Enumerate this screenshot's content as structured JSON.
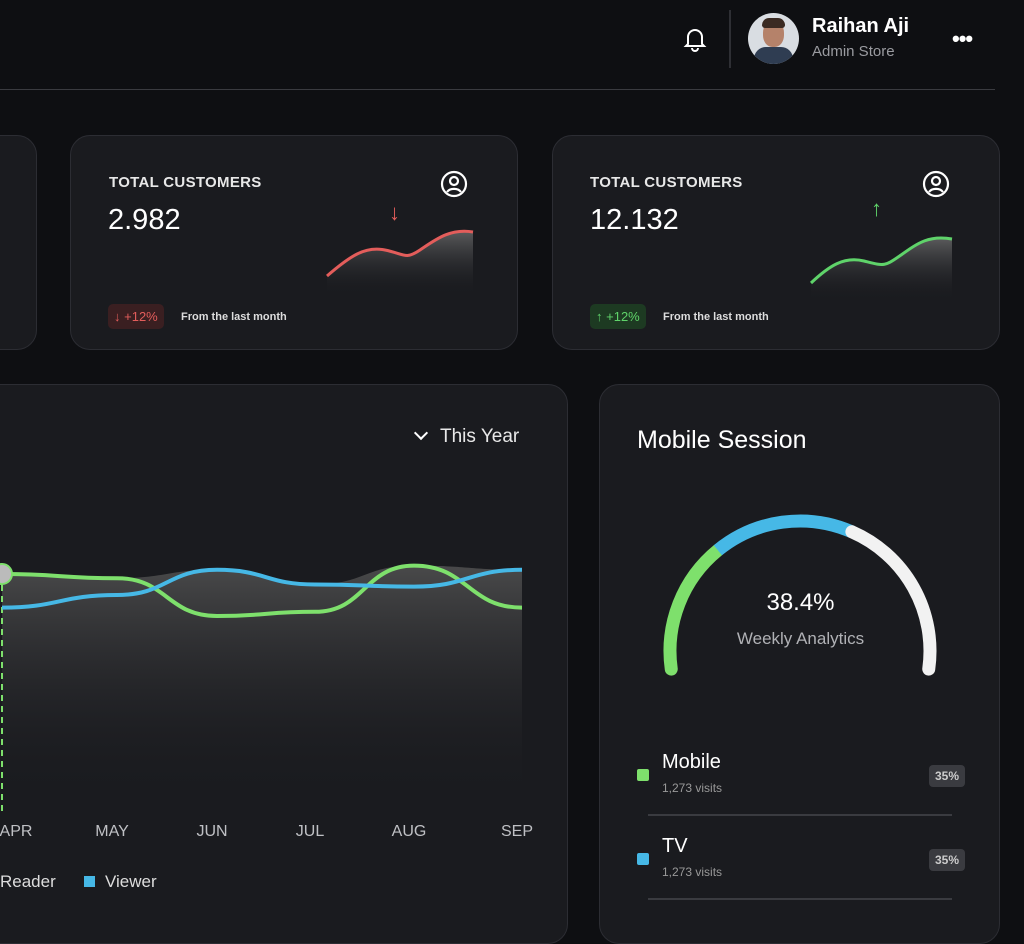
{
  "header": {
    "user_name": "Raihan Aji",
    "user_role": "Admin Store"
  },
  "cards": [
    {
      "title": "TOTAL CUSTOMERS",
      "value": "2.982",
      "change": "+12%",
      "direction": "down",
      "note": "From the last month",
      "color": "#e35d5b"
    },
    {
      "title": "TOTAL CUSTOMERS",
      "value": "12.132",
      "change": "+12%",
      "direction": "up",
      "note": "From the last month",
      "color": "#5fd36a"
    }
  ],
  "chart": {
    "period": "This Year",
    "legend": [
      "Reader",
      "Viewer"
    ]
  },
  "chart_data": {
    "type": "line",
    "categories": [
      "APR",
      "MAY",
      "JUN",
      "JUL",
      "AUG",
      "SEP"
    ],
    "series": [
      {
        "name": "Reader",
        "color": "#7ee06c",
        "values": [
          60,
          58,
          40,
          42,
          64,
          44
        ]
      },
      {
        "name": "Viewer",
        "color": "#46b8e6",
        "values": [
          44,
          50,
          62,
          55,
          54,
          62
        ]
      }
    ]
  },
  "mobile": {
    "title": "Mobile Session",
    "percent": "38.4%",
    "label": "Weekly Analytics",
    "gauge": [
      {
        "color": "#7ee06c",
        "share": 0.3
      },
      {
        "color": "#46b8e6",
        "share": 0.32
      },
      {
        "color": "#f2f2f2",
        "share": 0.38
      }
    ],
    "items": [
      {
        "name": "Mobile",
        "visits": "1,273 visits",
        "pct": "35%",
        "color": "#7ee06c"
      },
      {
        "name": "TV",
        "visits": "1,273 visits",
        "pct": "35%",
        "color": "#46b8e6"
      }
    ]
  }
}
